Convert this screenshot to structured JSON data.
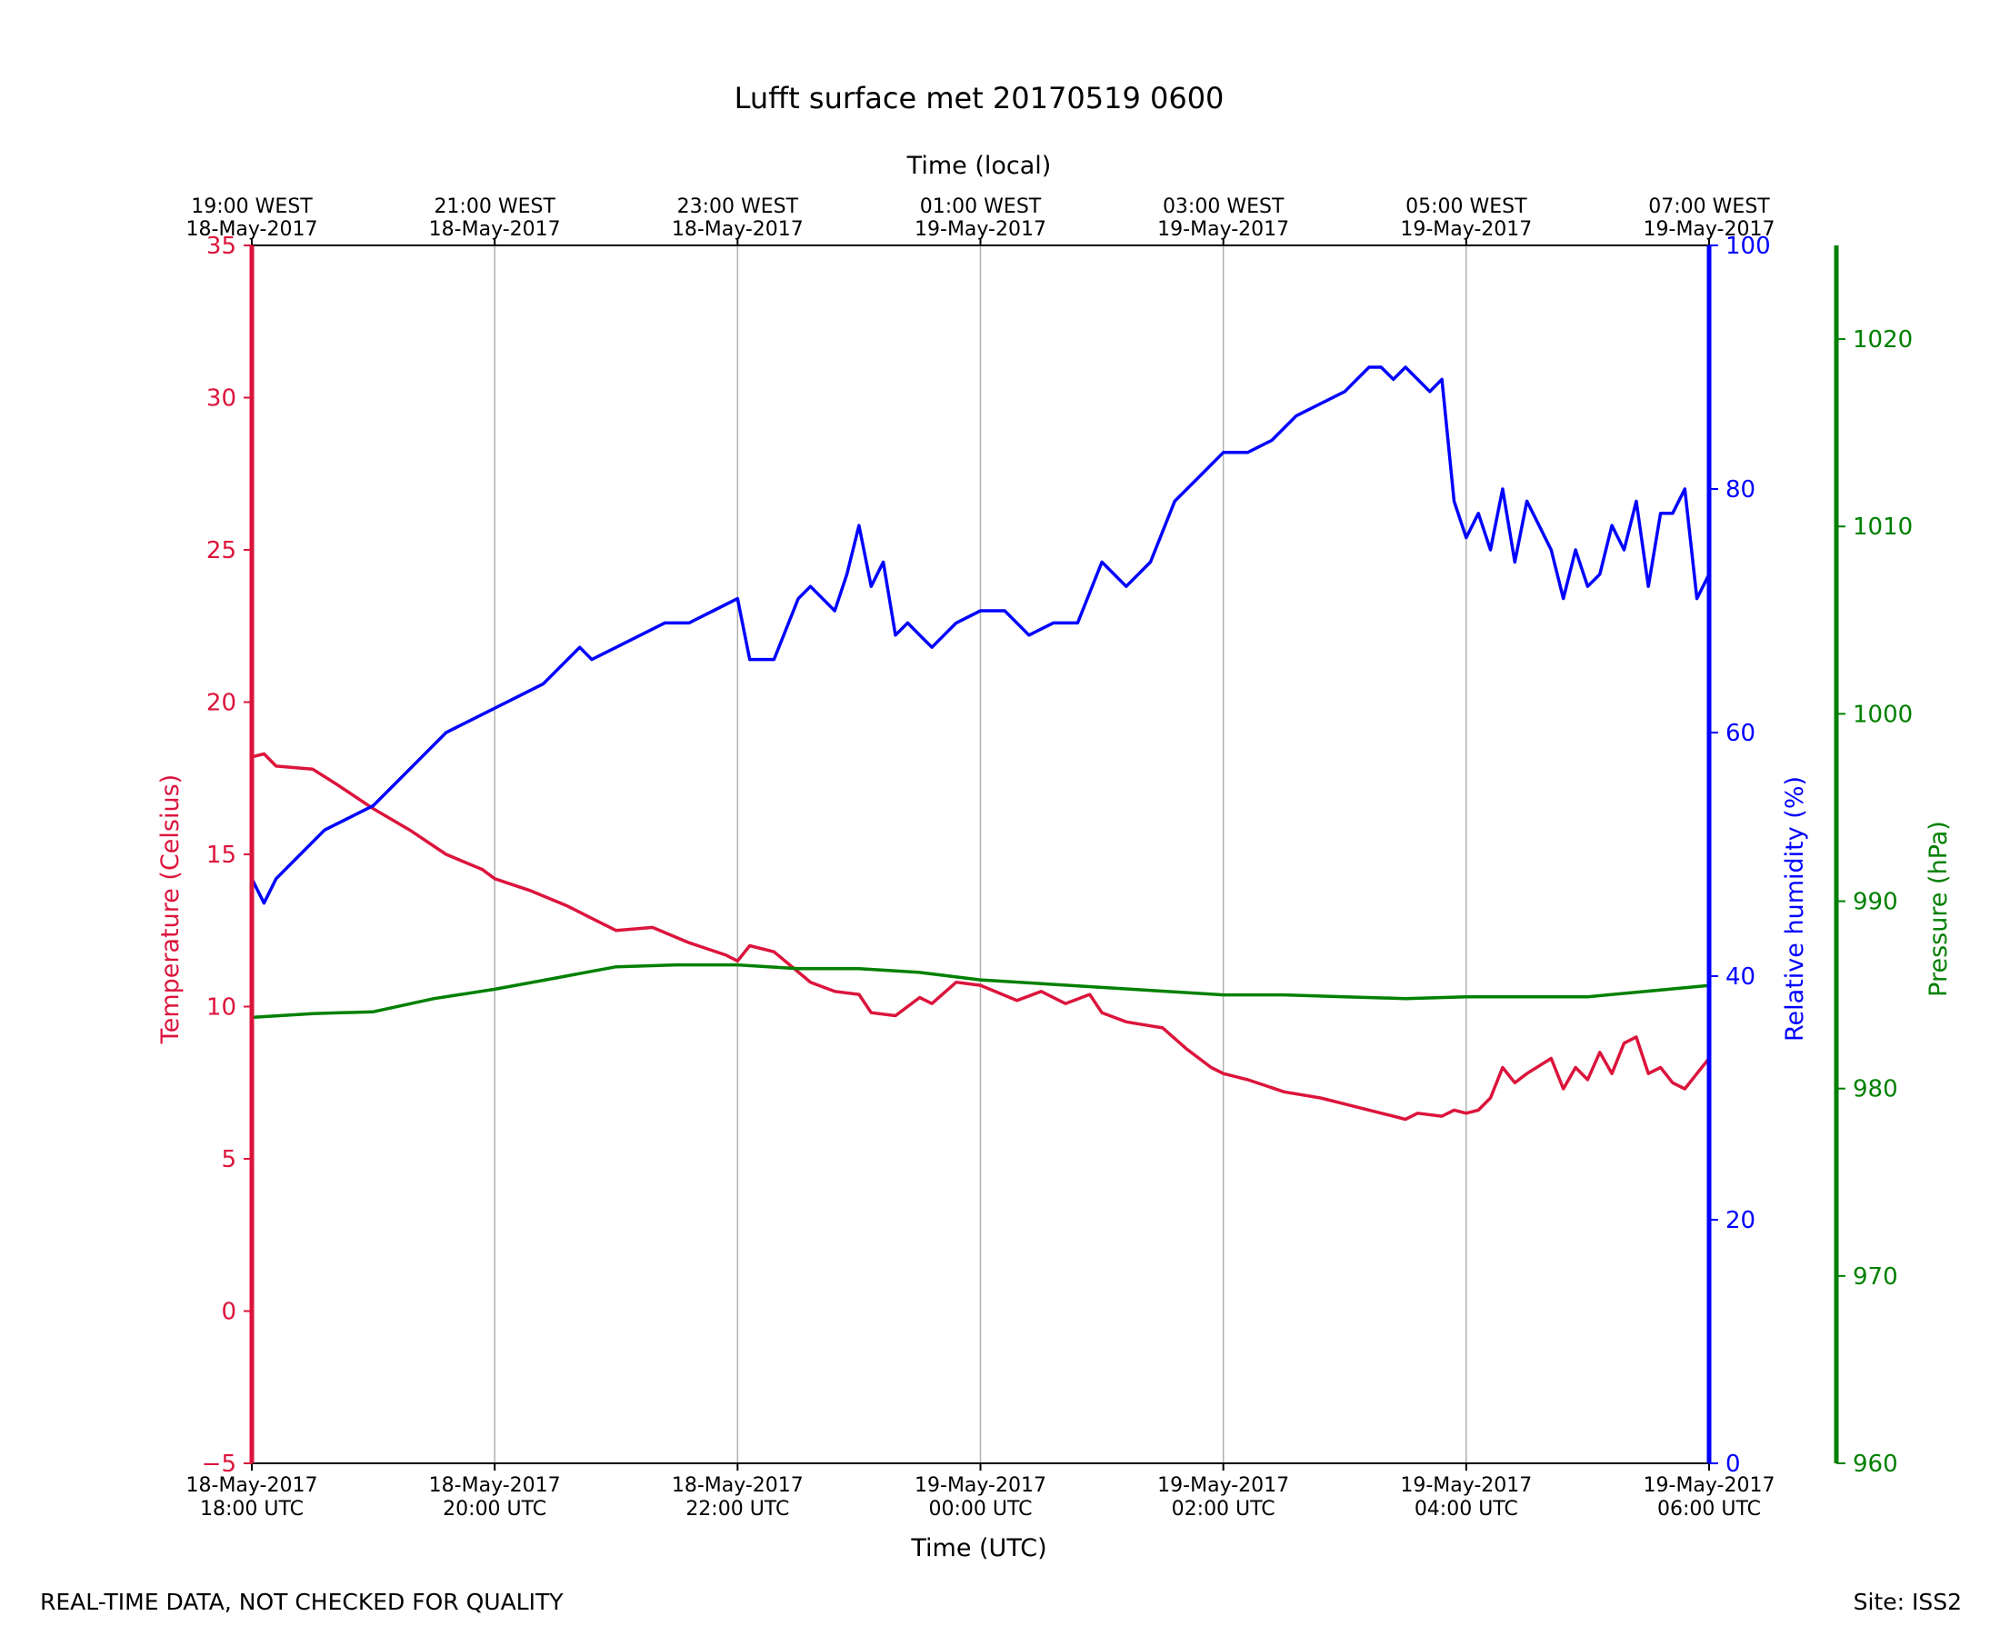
{
  "chart_data": {
    "type": "line",
    "title": "Lufft surface met 20170519 0600",
    "xlabel": "Time (UTC)",
    "xlabel_top": "Time (local)",
    "x_range_hours": [
      0,
      12
    ],
    "x_ticks_bottom": [
      {
        "h": 0,
        "date": "18-May-2017",
        "time": "18:00 UTC"
      },
      {
        "h": 2,
        "date": "18-May-2017",
        "time": "20:00 UTC"
      },
      {
        "h": 4,
        "date": "18-May-2017",
        "time": "22:00 UTC"
      },
      {
        "h": 6,
        "date": "19-May-2017",
        "time": "00:00 UTC"
      },
      {
        "h": 8,
        "date": "19-May-2017",
        "time": "02:00 UTC"
      },
      {
        "h": 10,
        "date": "19-May-2017",
        "time": "04:00 UTC"
      },
      {
        "h": 12,
        "date": "19-May-2017",
        "time": "06:00 UTC"
      }
    ],
    "x_ticks_top": [
      {
        "h": 0,
        "time": "19:00 WEST",
        "date": "18-May-2017"
      },
      {
        "h": 2,
        "time": "21:00 WEST",
        "date": "18-May-2017"
      },
      {
        "h": 4,
        "time": "23:00 WEST",
        "date": "18-May-2017"
      },
      {
        "h": 6,
        "time": "01:00 WEST",
        "date": "19-May-2017"
      },
      {
        "h": 8,
        "time": "03:00 WEST",
        "date": "19-May-2017"
      },
      {
        "h": 10,
        "time": "05:00 WEST",
        "date": "19-May-2017"
      },
      {
        "h": 12,
        "time": "07:00 WEST",
        "date": "19-May-2017"
      }
    ],
    "grid": "vertical",
    "axes": {
      "temperature": {
        "label": "Temperature (Celsius)",
        "range": [
          -5,
          35
        ],
        "ticks": [
          -5,
          0,
          5,
          10,
          15,
          20,
          25,
          30,
          35
        ],
        "tick_labels": [
          "−5",
          "0",
          "5",
          "10",
          "15",
          "20",
          "25",
          "30",
          "35"
        ],
        "color": "#dc143c",
        "side": "left"
      },
      "humidity": {
        "label": "Relative humidity (%)",
        "range": [
          0,
          100
        ],
        "ticks": [
          0,
          20,
          40,
          60,
          80,
          100
        ],
        "color": "#0000ff",
        "side": "right"
      },
      "pressure": {
        "label": "Pressure (hPa)",
        "range": [
          960,
          1025
        ],
        "ticks": [
          960,
          970,
          980,
          990,
          1000,
          1010,
          1020
        ],
        "color": "#008000",
        "side": "right-outer"
      }
    },
    "series": [
      {
        "name": "Temperature",
        "axis": "temperature",
        "color": "#dc143c",
        "x": [
          0,
          0.1,
          0.2,
          0.5,
          0.7,
          1.0,
          1.3,
          1.6,
          1.9,
          2.0,
          2.3,
          2.6,
          2.8,
          3.0,
          3.3,
          3.6,
          3.9,
          4.0,
          4.1,
          4.3,
          4.6,
          4.8,
          5.0,
          5.1,
          5.3,
          5.5,
          5.6,
          5.8,
          6.0,
          6.3,
          6.5,
          6.7,
          6.9,
          7.0,
          7.2,
          7.5,
          7.7,
          7.9,
          8.0,
          8.2,
          8.5,
          8.8,
          9.0,
          9.2,
          9.4,
          9.5,
          9.6,
          9.8,
          9.9,
          10.0,
          10.1,
          10.2,
          10.3,
          10.4,
          10.5,
          10.7,
          10.8,
          10.9,
          11.0,
          11.1,
          11.2,
          11.3,
          11.4,
          11.5,
          11.6,
          11.7,
          11.8,
          11.9,
          12.0
        ],
        "y": [
          18.2,
          18.3,
          17.9,
          17.8,
          17.3,
          16.5,
          15.8,
          15.0,
          14.5,
          14.2,
          13.8,
          13.3,
          12.9,
          12.5,
          12.6,
          12.1,
          11.7,
          11.5,
          12.0,
          11.8,
          10.8,
          10.5,
          10.4,
          9.8,
          9.7,
          10.3,
          10.1,
          10.8,
          10.7,
          10.2,
          10.5,
          10.1,
          10.4,
          9.8,
          9.5,
          9.3,
          8.6,
          8.0,
          7.8,
          7.6,
          7.2,
          7.0,
          6.8,
          6.6,
          6.4,
          6.3,
          6.5,
          6.4,
          6.6,
          6.5,
          6.6,
          7.0,
          8.0,
          7.5,
          7.8,
          8.3,
          7.3,
          8.0,
          7.6,
          8.5,
          7.8,
          8.8,
          9.0,
          7.8,
          8.0,
          7.5,
          7.3,
          7.8,
          8.3
        ]
      },
      {
        "name": "Relative humidity",
        "axis": "humidity",
        "color": "#0000ff",
        "x": [
          0,
          0.1,
          0.2,
          0.4,
          0.6,
          0.8,
          1.0,
          1.2,
          1.4,
          1.6,
          1.8,
          2.0,
          2.2,
          2.4,
          2.6,
          2.7,
          2.8,
          3.0,
          3.2,
          3.4,
          3.6,
          3.8,
          4.0,
          4.1,
          4.3,
          4.5,
          4.6,
          4.8,
          4.9,
          5.0,
          5.1,
          5.2,
          5.3,
          5.4,
          5.5,
          5.6,
          5.7,
          5.8,
          6.0,
          6.2,
          6.4,
          6.6,
          6.8,
          7.0,
          7.2,
          7.4,
          7.6,
          7.8,
          8.0,
          8.2,
          8.4,
          8.6,
          8.8,
          9.0,
          9.1,
          9.2,
          9.3,
          9.4,
          9.5,
          9.6,
          9.7,
          9.8,
          9.9,
          10.0,
          10.1,
          10.2,
          10.3,
          10.4,
          10.5,
          10.6,
          10.7,
          10.8,
          10.9,
          11.0,
          11.1,
          11.2,
          11.3,
          11.4,
          11.5,
          11.6,
          11.7,
          11.8,
          11.9,
          12.0
        ],
        "y": [
          48,
          46,
          48,
          50,
          52,
          53,
          54,
          56,
          58,
          60,
          61,
          62,
          63,
          64,
          66,
          67,
          66,
          67,
          68,
          69,
          69,
          70,
          71,
          66,
          66,
          71,
          72,
          70,
          73,
          77,
          72,
          74,
          68,
          69,
          68,
          67,
          68,
          69,
          70,
          70,
          68,
          69,
          69,
          74,
          72,
          74,
          79,
          81,
          83,
          83,
          84,
          86,
          87,
          88,
          89,
          90,
          90,
          89,
          90,
          89,
          88,
          89,
          79,
          76,
          78,
          75,
          80,
          74,
          79,
          77,
          75,
          71,
          75,
          72,
          73,
          77,
          75,
          79,
          72,
          78,
          78,
          80,
          71,
          73
        ]
      },
      {
        "name": "Pressure",
        "axis": "pressure",
        "color": "#008000",
        "x": [
          0,
          0.5,
          1.0,
          1.5,
          2.0,
          2.5,
          3.0,
          3.5,
          4.0,
          4.5,
          5.0,
          5.5,
          6.0,
          6.5,
          7.0,
          7.5,
          8.0,
          8.5,
          9.0,
          9.5,
          10.0,
          10.5,
          11.0,
          11.5,
          12.0
        ],
        "y": [
          983.8,
          984.0,
          984.1,
          984.8,
          985.3,
          985.9,
          986.5,
          986.6,
          986.6,
          986.4,
          986.4,
          986.2,
          985.8,
          985.6,
          985.4,
          985.2,
          985.0,
          985.0,
          984.9,
          984.8,
          984.9,
          984.9,
          984.9,
          985.2,
          985.5
        ]
      }
    ],
    "footer_left": "REAL-TIME DATA, NOT CHECKED FOR QUALITY",
    "footer_right": "Site: ISS2"
  }
}
